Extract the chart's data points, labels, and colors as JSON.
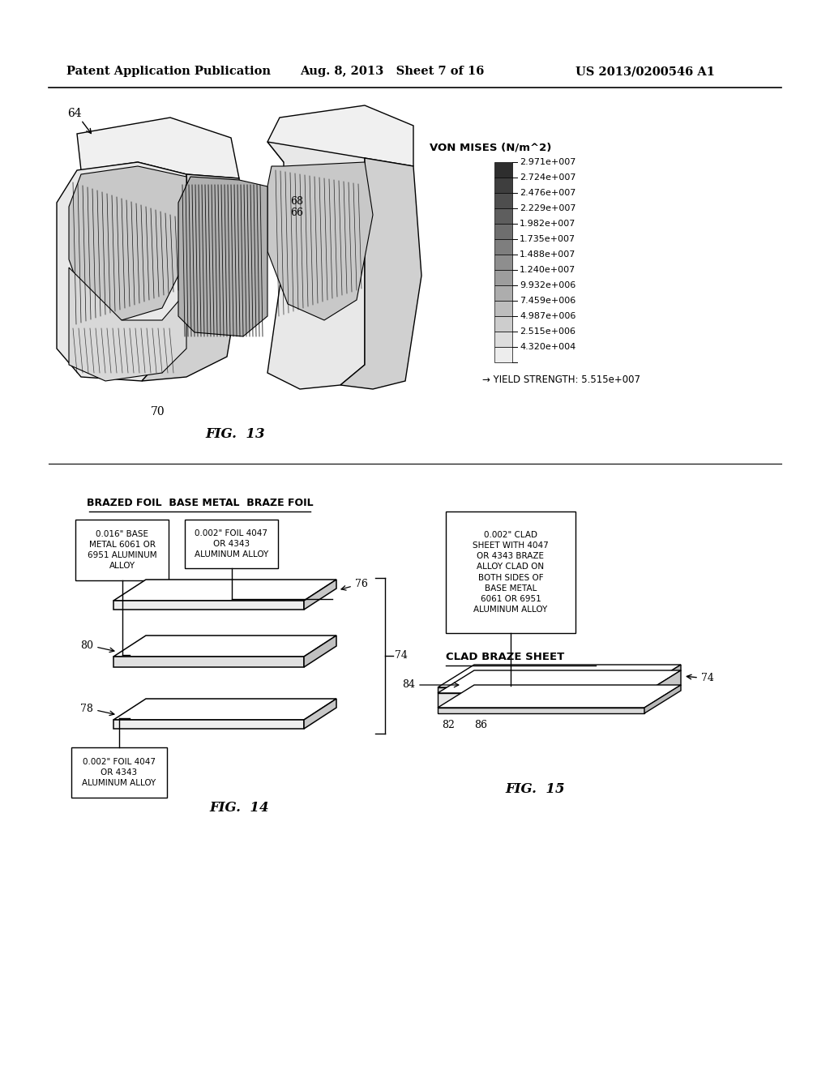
{
  "header_left": "Patent Application Publication",
  "header_mid": "Aug. 8, 2013   Sheet 7 of 16",
  "header_right": "US 2013/0200546 A1",
  "fig13_label": "FIG.  13",
  "fig14_label": "FIG.  14",
  "fig15_label": "FIG.  15",
  "von_mises_title": "VON MISES (N/m^2)",
  "legend_values": [
    "2.971e+007",
    "2.724e+007",
    "2.476e+007",
    "2.229e+007",
    "1.982e+007",
    "1.735e+007",
    "1.488e+007",
    "1.240e+007",
    "9.932e+006",
    "7.459e+006",
    "4.987e+006",
    "2.515e+006",
    "4.320e+004"
  ],
  "yield_strength_text": "→ YIELD STRENGTH: 5.515e+007",
  "fig14_title": "BRAZED FOIL  BASE METAL  BRAZE FOIL",
  "box1_text": "0.016\" BASE\nMETAL 6061 OR\n6951 ALUMINUM\nALLOY",
  "box2_text": "0.002\" FOIL 4047\nOR 4343\nALUMINUM ALLOY",
  "box3_text": "0.002\" FOIL 4047\nOR 4343\nALUMINUM ALLOY",
  "box4_text": "0.002\" CLAD\nSHEET WITH 4047\nOR 4343 BRAZE\nALLOY CLAD ON\nBOTH SIDES OF\nBASE METAL\n6061 OR 6951\nALUMINUM ALLOY",
  "clad_braze_text": "CLAD BRAZE SHEET",
  "bg_color": "#ffffff",
  "line_color": "#000000",
  "label64": "64",
  "label66": "66",
  "label68": "68",
  "label70": "70",
  "label74": "74",
  "label76": "76",
  "label78": "78",
  "label80": "80",
  "label82": "82",
  "label84": "84",
  "label86": "86"
}
